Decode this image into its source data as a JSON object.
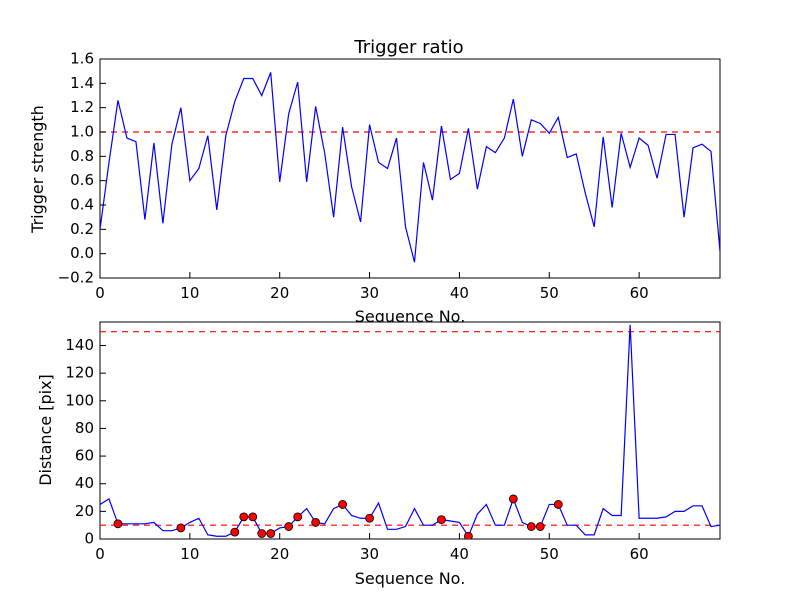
{
  "chart_data": [
    {
      "type": "line",
      "title": "Trigger ratio",
      "xlabel": "Sequence No.",
      "ylabel": "Trigger strength",
      "xlim": [
        0,
        69
      ],
      "ylim": [
        -0.2,
        1.6
      ],
      "xticks": [
        "0",
        "10",
        "20",
        "30",
        "40",
        "50",
        "60"
      ],
      "yticks": [
        "−0.2",
        "0.0",
        "0.2",
        "0.4",
        "0.6",
        "0.8",
        "1.0",
        "1.2",
        "1.4",
        "1.6"
      ],
      "grid": false,
      "colors": {
        "line": "#0000ff",
        "threshold": "#ff0000"
      },
      "thresholds": [
        1.0
      ],
      "x": [
        0,
        1,
        2,
        3,
        4,
        5,
        6,
        7,
        8,
        9,
        10,
        11,
        12,
        13,
        14,
        15,
        16,
        17,
        18,
        19,
        20,
        21,
        22,
        23,
        24,
        25,
        26,
        27,
        28,
        29,
        30,
        31,
        32,
        33,
        34,
        35,
        36,
        37,
        38,
        39,
        40,
        41,
        42,
        43,
        44,
        45,
        46,
        47,
        48,
        49,
        50,
        51,
        52,
        53,
        54,
        55,
        56,
        57,
        58,
        59,
        60,
        61,
        62,
        63,
        64,
        65,
        66,
        67,
        68,
        69
      ],
      "values": [
        0.2,
        0.75,
        1.26,
        0.95,
        0.92,
        0.28,
        0.91,
        0.25,
        0.9,
        1.2,
        0.6,
        0.7,
        0.97,
        0.36,
        0.97,
        1.25,
        1.44,
        1.44,
        1.3,
        1.49,
        0.59,
        1.15,
        1.41,
        0.59,
        1.21,
        0.83,
        0.3,
        1.04,
        0.55,
        0.26,
        1.06,
        0.75,
        0.7,
        0.95,
        0.22,
        -0.07,
        0.75,
        0.44,
        1.05,
        0.61,
        0.66,
        1.03,
        0.53,
        0.88,
        0.83,
        0.95,
        1.27,
        0.8,
        1.1,
        1.07,
        0.99,
        1.12,
        0.79,
        0.82,
        0.5,
        0.22,
        0.96,
        0.38,
        0.99,
        0.71,
        0.95,
        0.89,
        0.62,
        0.98,
        0.98,
        0.3,
        0.87,
        0.9,
        0.84,
        0.02
      ]
    },
    {
      "type": "line",
      "title": "",
      "xlabel": "Sequence No.",
      "ylabel": "Distance [pix]",
      "xlim": [
        0,
        69
      ],
      "ylim": [
        0,
        157
      ],
      "xticks": [
        "0",
        "10",
        "20",
        "30",
        "40",
        "50",
        "60"
      ],
      "yticks": [
        "0",
        "20",
        "40",
        "60",
        "80",
        "100",
        "120",
        "140"
      ],
      "grid": false,
      "colors": {
        "line": "#0000ff",
        "threshold": "#ff0000",
        "marker_fill": "#ff0000",
        "marker_edge": "#000000"
      },
      "thresholds": [
        10,
        150
      ],
      "x": [
        0,
        1,
        2,
        3,
        4,
        5,
        6,
        7,
        8,
        9,
        10,
        11,
        12,
        13,
        14,
        15,
        16,
        17,
        18,
        19,
        20,
        21,
        22,
        23,
        24,
        25,
        26,
        27,
        28,
        29,
        30,
        31,
        32,
        33,
        34,
        35,
        36,
        37,
        38,
        39,
        40,
        41,
        42,
        43,
        44,
        45,
        46,
        47,
        48,
        49,
        50,
        51,
        52,
        53,
        54,
        55,
        56,
        57,
        58,
        59,
        60,
        61,
        62,
        63,
        64,
        65,
        66,
        67,
        68,
        69
      ],
      "values": [
        25,
        29,
        11,
        11,
        11,
        11,
        12,
        6,
        6,
        8,
        12,
        15,
        3,
        2,
        2,
        5,
        16,
        16,
        4,
        4,
        8,
        9,
        16,
        22,
        12,
        11,
        22,
        25,
        17,
        15,
        15,
        26,
        7,
        7,
        9,
        22,
        10,
        10,
        14,
        13,
        12,
        2,
        18,
        25,
        10,
        10,
        29,
        12,
        9,
        9,
        25,
        25,
        10,
        10,
        3,
        3,
        22,
        17,
        17,
        155,
        15,
        15,
        15,
        16,
        20,
        20,
        24,
        24,
        9,
        10
      ],
      "highlighted_points": [
        {
          "x": 2,
          "y": 11
        },
        {
          "x": 9,
          "y": 8
        },
        {
          "x": 15,
          "y": 5
        },
        {
          "x": 16,
          "y": 16
        },
        {
          "x": 17,
          "y": 16
        },
        {
          "x": 18,
          "y": 4
        },
        {
          "x": 19,
          "y": 4
        },
        {
          "x": 21,
          "y": 9
        },
        {
          "x": 22,
          "y": 16
        },
        {
          "x": 24,
          "y": 12
        },
        {
          "x": 27,
          "y": 25
        },
        {
          "x": 30,
          "y": 15
        },
        {
          "x": 38,
          "y": 14
        },
        {
          "x": 41,
          "y": 2
        },
        {
          "x": 46,
          "y": 29
        },
        {
          "x": 48,
          "y": 9
        },
        {
          "x": 49,
          "y": 9
        },
        {
          "x": 51,
          "y": 25
        }
      ]
    }
  ]
}
